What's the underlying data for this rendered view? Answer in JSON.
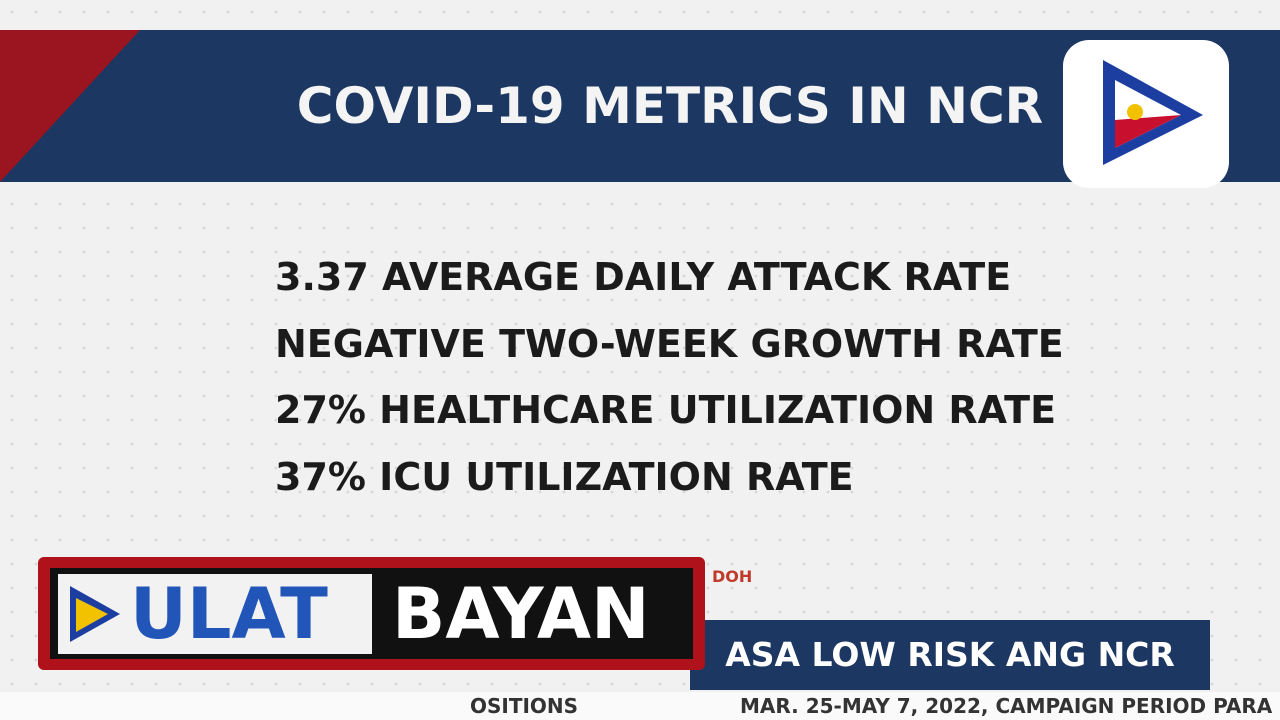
{
  "header": {
    "title": "COVID-19 METRICS IN NCR"
  },
  "metrics": [
    "3.37 AVERAGE DAILY ATTACK RATE",
    "NEGATIVE TWO-WEEK GROWTH RATE",
    "27% HEALTHCARE UTILIZATION RATE",
    "37% ICU UTILIZATION RATE"
  ],
  "source": "DOH",
  "program": {
    "part1": "ULAT",
    "part2": "BAYAN"
  },
  "headline": "ASA LOW RISK ANG NCR",
  "ticker": {
    "left": "OSITIONS",
    "right": "MAR. 25-MAY 7, 2022, CAMPAIGN PERIOD PARA"
  }
}
